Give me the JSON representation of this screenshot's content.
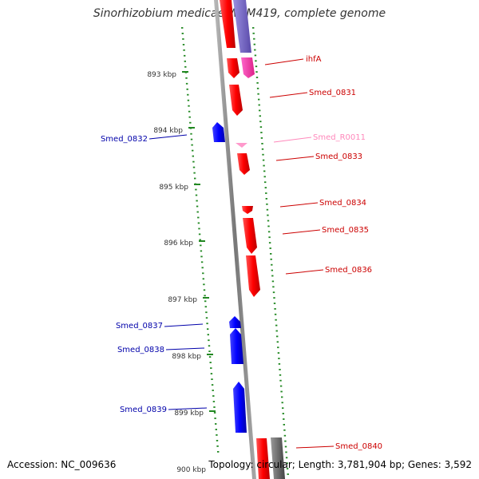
{
  "title": "Sinorhizobium medicae WSM419, complete genome",
  "footer": {
    "accession": "Accession: NC_009636",
    "summary": "Topology: circular; Length: 3,781,904 bp; Genes: 3,592"
  },
  "ticks": [
    "893 kbp",
    "894 kbp",
    "895 kbp",
    "896 kbp",
    "897 kbp",
    "898 kbp",
    "899 kbp",
    "900 kbp"
  ],
  "genes_forward": [
    "ihfA",
    "Smed_0831",
    "Smed_R0011",
    "Smed_0833",
    "Smed_0834",
    "Smed_0835",
    "Smed_0836",
    "Smed_0840"
  ],
  "genes_reverse": [
    "Smed_0832",
    "Smed_0837",
    "Smed_0838",
    "Smed_0839"
  ],
  "colors": {
    "forward": "#ff0000",
    "reverse": "#0000ff",
    "rna": "#ff99cc",
    "magenta": "#ff33aa",
    "purple": "#7766cc",
    "gray": "#666666",
    "tick": "#228822",
    "label_forward": "#cc0000",
    "label_reverse": "#0000aa",
    "label_rna": "#ff88bb"
  }
}
